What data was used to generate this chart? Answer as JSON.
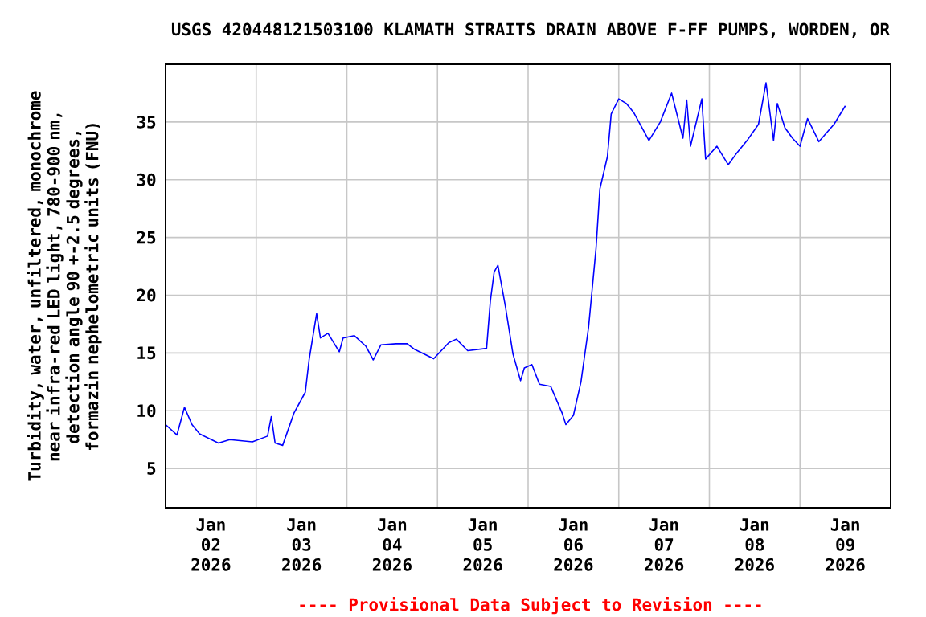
{
  "chart_data": {
    "type": "line",
    "title": "USGS 420448121503100 KLAMATH STRAITS DRAIN ABOVE F-FF PUMPS, WORDEN, OR",
    "ylabel": "Turbidity, water, unfiltered, monochrome near infra-red LED light, 780-900 nm, detection angle 90 +-2.5 degrees, formazin nephelometric units (FNU)",
    "annotations": [
      "---- Provisional Data Subject to Revision ----"
    ],
    "x": [
      "2026-01-02T00:00",
      "2026-01-02T03:00",
      "2026-01-02T05:00",
      "2026-01-02T07:00",
      "2026-01-02T09:00",
      "2026-01-02T14:00",
      "2026-01-02T17:00",
      "2026-01-02T23:00",
      "2026-01-03T03:00",
      "2026-01-03T04:00",
      "2026-01-03T05:00",
      "2026-01-03T07:00",
      "2026-01-03T10:00",
      "2026-01-03T13:00",
      "2026-01-03T14:00",
      "2026-01-03T16:00",
      "2026-01-03T17:00",
      "2026-01-03T19:00",
      "2026-01-03T22:00",
      "2026-01-03T23:00",
      "2026-01-04T02:00",
      "2026-01-04T05:00",
      "2026-01-04T07:00",
      "2026-01-04T09:00",
      "2026-01-04T13:00",
      "2026-01-04T16:00",
      "2026-01-04T18:00",
      "2026-01-04T23:00",
      "2026-01-05T03:00",
      "2026-01-05T05:00",
      "2026-01-05T08:00",
      "2026-01-05T13:00",
      "2026-01-05T14:00",
      "2026-01-05T15:00",
      "2026-01-05T16:00",
      "2026-01-05T18:00",
      "2026-01-05T20:00",
      "2026-01-05T22:00",
      "2026-01-05T23:00",
      "2026-01-06T01:00",
      "2026-01-06T03:00",
      "2026-01-06T06:00",
      "2026-01-06T09:00",
      "2026-01-06T10:00",
      "2026-01-06T12:00",
      "2026-01-06T14:00",
      "2026-01-06T16:00",
      "2026-01-06T18:00",
      "2026-01-06T19:00",
      "2026-01-06T21:00",
      "2026-01-06T22:00",
      "2026-01-07T00:00",
      "2026-01-07T02:00",
      "2026-01-07T04:00",
      "2026-01-07T08:00",
      "2026-01-07T11:00",
      "2026-01-07T14:00",
      "2026-01-07T17:00",
      "2026-01-07T18:00",
      "2026-01-07T19:00",
      "2026-01-07T22:00",
      "2026-01-07T23:00",
      "2026-01-08T02:00",
      "2026-01-08T05:00",
      "2026-01-08T07:00",
      "2026-01-08T10:00",
      "2026-01-08T13:00",
      "2026-01-08T15:00",
      "2026-01-08T17:00",
      "2026-01-08T18:00",
      "2026-01-08T20:00",
      "2026-01-08T22:00",
      "2026-01-09T00:00",
      "2026-01-09T02:00",
      "2026-01-09T05:00",
      "2026-01-09T09:00",
      "2026-01-09T12:00"
    ],
    "series": [
      {
        "color": "#0000ff",
        "values": [
          8.8,
          7.9,
          10.3,
          8.8,
          8.0,
          7.2,
          7.5,
          7.3,
          7.8,
          9.5,
          7.2,
          7.0,
          9.8,
          11.6,
          14.4,
          18.4,
          16.3,
          16.7,
          15.1,
          16.3,
          16.5,
          15.6,
          14.4,
          15.7,
          15.8,
          15.8,
          15.3,
          14.5,
          15.9,
          16.2,
          15.2,
          15.4,
          19.5,
          22.0,
          22.6,
          19.0,
          14.9,
          12.6,
          13.7,
          14.0,
          12.3,
          12.1,
          9.8,
          8.8,
          9.6,
          12.5,
          17.2,
          24.1,
          29.2,
          32.0,
          35.7,
          37.0,
          36.6,
          35.8,
          33.4,
          35.0,
          37.5,
          33.6,
          36.9,
          32.9,
          37.0,
          31.8,
          32.9,
          31.3,
          32.2,
          33.4,
          34.8,
          38.4,
          33.4,
          36.6,
          34.5,
          33.6,
          32.9,
          35.3,
          33.3,
          34.8,
          36.4
        ]
      }
    ],
    "xlim": [
      "2026-01-02",
      "2026-01-10"
    ],
    "xticks": [
      {
        "value": "2026-01-02T12:00",
        "label": "Jan 02 2026"
      },
      {
        "value": "2026-01-03T12:00",
        "label": "Jan 03 2026"
      },
      {
        "value": "2026-01-04T12:00",
        "label": "Jan 04 2026"
      },
      {
        "value": "2026-01-05T12:00",
        "label": "Jan 05 2026"
      },
      {
        "value": "2026-01-06T12:00",
        "label": "Jan 06 2026"
      },
      {
        "value": "2026-01-07T12:00",
        "label": "Jan 07 2026"
      },
      {
        "value": "2026-01-08T12:00",
        "label": "Jan 08 2026"
      },
      {
        "value": "2026-01-09T12:00",
        "label": "Jan 09 2026"
      },
      {
        "value": "2026-01-03",
        "label": null
      },
      {
        "value": "2026-01-04",
        "label": null
      },
      {
        "value": "2026-01-05",
        "label": null
      },
      {
        "value": "2026-01-06",
        "label": null
      },
      {
        "value": "2026-01-07",
        "label": null
      },
      {
        "value": "2026-01-08",
        "label": null
      },
      {
        "value": "2026-01-09",
        "label": null
      }
    ],
    "ylim": [
      1.6,
      40
    ],
    "yticks": [
      5,
      10,
      15,
      20,
      25,
      30,
      35
    ],
    "grid": true,
    "marker": "none",
    "line_style": "solid"
  }
}
